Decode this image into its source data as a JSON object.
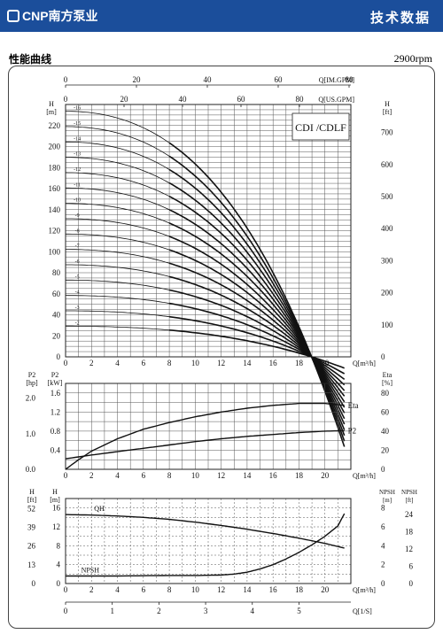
{
  "header": {
    "brand": "CNP南方泵业",
    "title": "技术数据",
    "colors": {
      "bar": "#1b4e9b",
      "text": "#ffffff"
    }
  },
  "section": {
    "title": "性能曲线",
    "speed": "2900rpm"
  },
  "chart_data": [
    {
      "type": "line",
      "id": "qh-family",
      "model_label": "CDI /CDLF",
      "x_axis_bottom": {
        "label": "Q[m³/h]",
        "ticks": [
          0,
          2,
          4,
          6,
          8,
          10,
          12,
          14,
          16,
          18,
          20
        ],
        "range": [
          0,
          22
        ]
      },
      "x_axis_top_im": {
        "label": "Q[IM.GPM]",
        "ticks": [
          0,
          20,
          40,
          60,
          80
        ]
      },
      "x_axis_top_us": {
        "label": "Q[US.GPM]",
        "ticks": [
          0,
          20,
          40,
          60,
          80
        ]
      },
      "y_axis_left": {
        "label": "H",
        "unit": "[m]",
        "ticks": [
          0,
          20,
          40,
          60,
          80,
          100,
          120,
          140,
          160,
          180,
          200,
          220
        ],
        "range": [
          0,
          240
        ]
      },
      "y_axis_right": {
        "label": "H",
        "unit": "[ft]",
        "ticks": [
          0,
          100,
          200,
          300,
          400,
          500,
          600,
          700
        ]
      },
      "grid": true,
      "shutoff_head_per_stage": 14.6,
      "stage_labels": [
        "-2",
        "-3",
        "-4",
        "-5",
        "-6",
        "-7",
        "-8",
        "-9",
        "-10",
        "-11",
        "-12",
        "-13",
        "-14",
        "-15",
        "-16"
      ],
      "end_flow": [
        21.5,
        21.5,
        21.5,
        21.5,
        21.5,
        21.5,
        21.5,
        21.5,
        21.5,
        21.5,
        21.5,
        21.5,
        21.5,
        21.5,
        21.5
      ],
      "heavy_from_flow": 8
    },
    {
      "type": "line",
      "id": "power-efficiency",
      "x_axis": {
        "label": "Q[m³/h]",
        "ticks": [
          0,
          2,
          4,
          6,
          8,
          10,
          12,
          14,
          16,
          18,
          20
        ],
        "range": [
          0,
          22
        ]
      },
      "y_axis_p2_kw": {
        "label": "P2",
        "unit": "[kW]",
        "ticks": [
          0.4,
          0.8,
          1.2,
          1.6
        ],
        "range": [
          0,
          1.8
        ]
      },
      "y_axis_p2_hp": {
        "label": "P2",
        "unit": "[hp]",
        "ticks": [
          0.0,
          1.0,
          2.0
        ]
      },
      "y_axis_eta": {
        "label": "Eta",
        "unit": "[%]",
        "ticks": [
          0,
          20,
          40,
          60,
          80
        ],
        "range": [
          0,
          90
        ]
      },
      "grid": true,
      "series": [
        {
          "name": "Eta",
          "axis": "eta",
          "x": [
            0,
            1,
            2,
            4,
            6,
            8,
            10,
            12,
            14,
            16,
            18,
            20,
            21.5
          ],
          "y": [
            0,
            10,
            19,
            32,
            42,
            49,
            55,
            60,
            64,
            67,
            69,
            69,
            67
          ]
        },
        {
          "name": "P2",
          "axis": "p2",
          "x": [
            0,
            2,
            4,
            6,
            8,
            10,
            12,
            14,
            16,
            18,
            20,
            21.5
          ],
          "y": [
            0.22,
            0.3,
            0.37,
            0.44,
            0.51,
            0.58,
            0.64,
            0.69,
            0.73,
            0.77,
            0.8,
            0.81
          ]
        }
      ]
    },
    {
      "type": "line",
      "id": "qh-npsh",
      "x_axis": {
        "label": "Q[m³/h]",
        "ticks": [
          0,
          2,
          4,
          6,
          8,
          10,
          12,
          14,
          16,
          18,
          20
        ],
        "range": [
          0,
          22
        ]
      },
      "x_axis_ls": {
        "label": "Q[1/S]",
        "ticks": [
          0,
          1,
          2,
          3,
          4,
          5
        ]
      },
      "y_axis_h_m": {
        "label": "H",
        "unit": "[m]",
        "ticks": [
          0,
          4,
          8,
          12,
          16
        ],
        "range": [
          0,
          18
        ]
      },
      "y_axis_h_ft": {
        "label": "H",
        "unit": "[ft]",
        "ticks": [
          0,
          13,
          26,
          39,
          52
        ]
      },
      "y_axis_npsh_m": {
        "label": "NPSH",
        "unit": "[m]",
        "ticks": [
          0,
          2,
          4,
          6,
          8
        ],
        "range": [
          0,
          9
        ]
      },
      "y_axis_npsh_ft": {
        "label": "NPSH",
        "unit": "[ft]",
        "ticks": [
          0,
          6,
          12,
          18,
          24
        ]
      },
      "grid": true,
      "series": [
        {
          "name": "QH",
          "axis": "h",
          "x": [
            0,
            2,
            4,
            6,
            8,
            10,
            12,
            14,
            16,
            18,
            20,
            21.5
          ],
          "y": [
            14.6,
            14.5,
            14.3,
            14.0,
            13.6,
            13.0,
            12.3,
            11.5,
            10.6,
            9.6,
            8.5,
            7.5
          ]
        },
        {
          "name": "NPSH",
          "axis": "npsh",
          "x": [
            0,
            4,
            8,
            10,
            12,
            13,
            14,
            15,
            16,
            17,
            18,
            19,
            20,
            21,
            21.5
          ],
          "y": [
            0.8,
            0.8,
            0.85,
            0.85,
            0.9,
            1.0,
            1.2,
            1.55,
            2.0,
            2.6,
            3.3,
            4.1,
            5.0,
            6.1,
            7.4
          ]
        }
      ]
    }
  ]
}
